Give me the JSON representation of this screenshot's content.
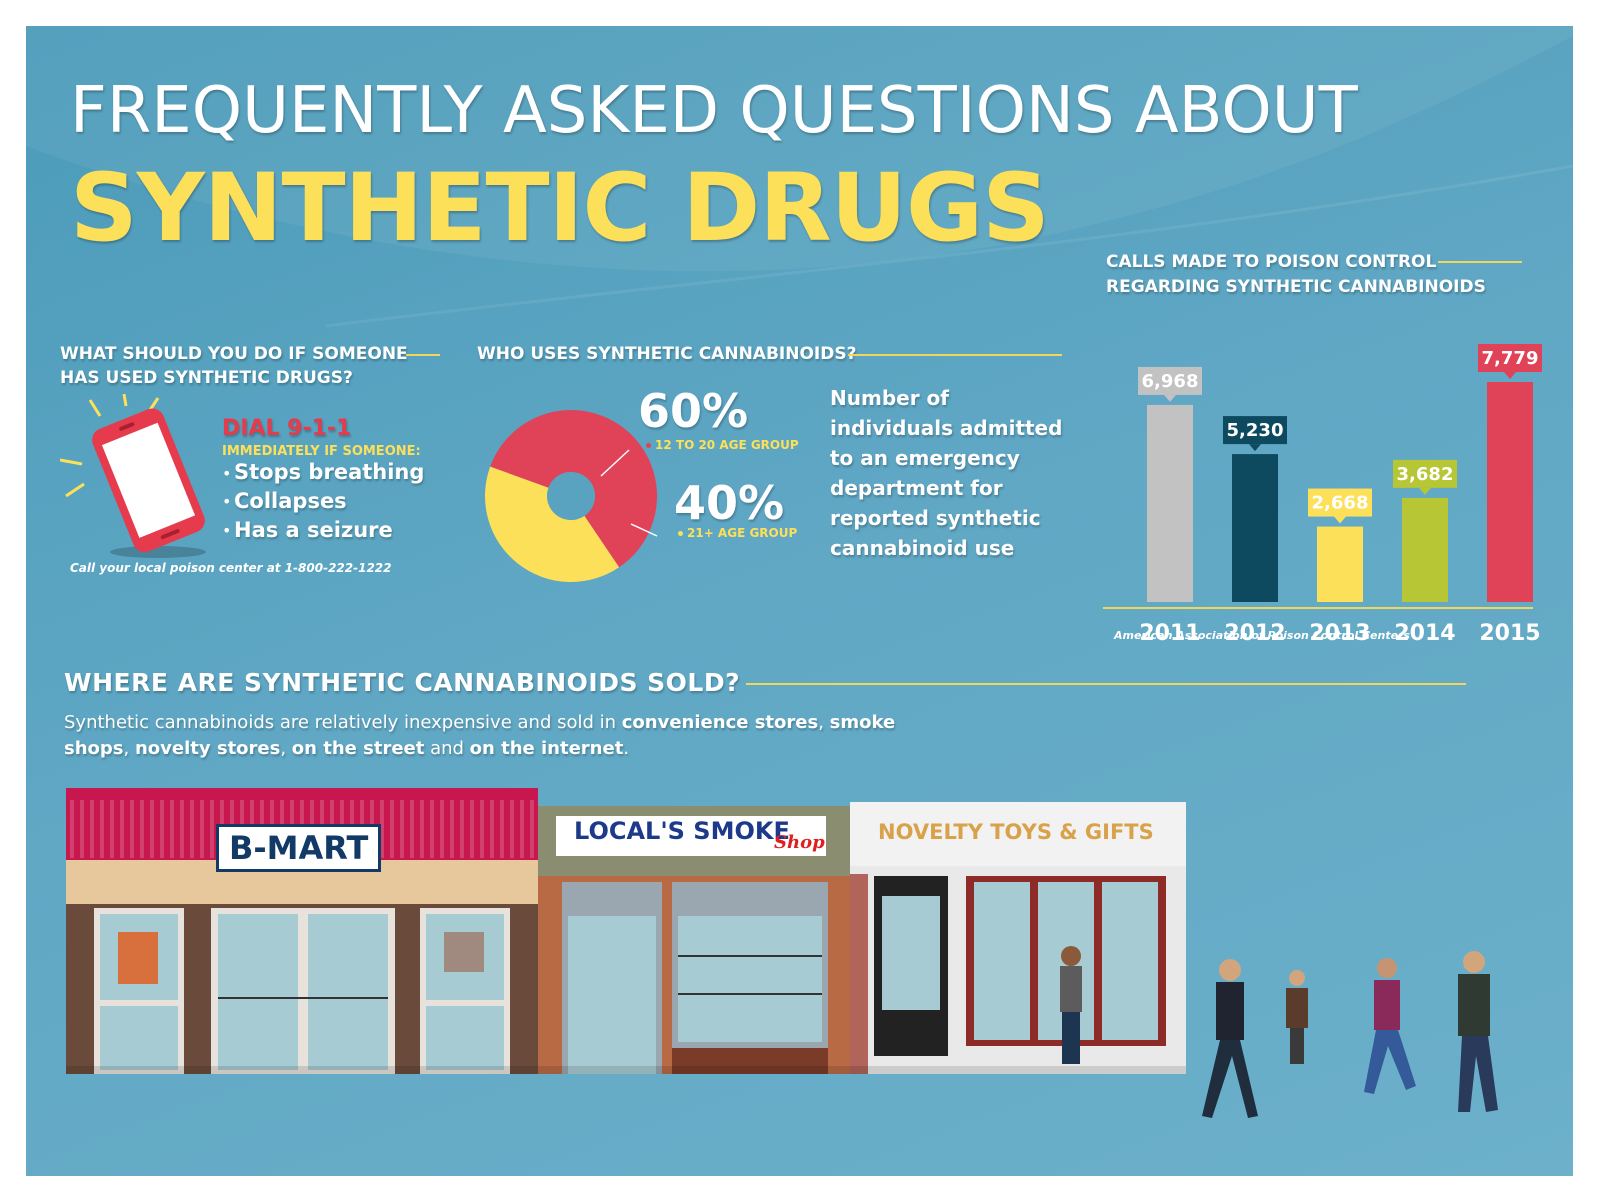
{
  "title": {
    "line1": "FREQUENTLY ASKED QUESTIONS ABOUT",
    "line2": "SYNTHETIC DRUGS"
  },
  "section_emergency": {
    "heading_line1": "WHAT SHOULD YOU DO IF SOMEONE",
    "heading_line2": "HAS USED SYNTHETIC DRUGS?",
    "dial": "DIAL 9-1-1",
    "dial_sub": "IMMEDIATELY IF SOMEONE:",
    "symptoms": [
      "Stops breathing",
      "Collapses",
      "Has a seizure"
    ],
    "bullet": "•",
    "poison_center_note": "Call your local poison center at 1-800-222-1222",
    "icon": "phone-ringing-icon"
  },
  "section_users": {
    "heading": "WHO USES SYNTHETIC CANNABINOIDS?",
    "slices": [
      {
        "value_label": "60%",
        "label": "12 TO 20 AGE GROUP",
        "value": 60,
        "color": "#e04258"
      },
      {
        "value_label": "40%",
        "label": "21+ AGE GROUP",
        "value": 40,
        "color": "#fde05a"
      }
    ],
    "admitted_text": "Number of individuals admitted to an emergency department for reported synthetic cannabinoid use"
  },
  "chart_data": [
    {
      "type": "pie",
      "categories": [
        "12 TO 20 AGE GROUP",
        "21+ AGE GROUP"
      ],
      "values": [
        60,
        40
      ]
    },
    {
      "type": "bar",
      "title": "CALLS MADE TO POISON CONTROL REGARDING SYNTHETIC  CANNABINOIDS",
      "title_line1": "CALLS MADE TO POISON CONTROL",
      "title_line2": "REGARDING SYNTHETIC  CANNABINOIDS",
      "categories": [
        "2011",
        "2012",
        "2013",
        "2014",
        "2015"
      ],
      "values": [
        6968,
        5230,
        2668,
        3682,
        7779
      ],
      "value_labels": [
        "6,968",
        "5,230",
        "2,668",
        "3,682",
        "7,779"
      ],
      "colors": [
        "#c2c2c2",
        "#0d4a60",
        "#fde05a",
        "#b7c634",
        "#e04258"
      ],
      "label_text_colors": [
        "#ffffff",
        "#ffffff",
        "#ffffff",
        "#ffffff",
        "#ffffff"
      ],
      "source": "American Association of Poison Control Centers",
      "grid": false,
      "legend": "none"
    }
  ],
  "section_where": {
    "heading": "WHERE ARE SYNTHETIC CANNABINOIDS SOLD?",
    "text_parts": [
      {
        "t": "Synthetic cannabinoids are relatively inexpensive and sold in ",
        "b": false
      },
      {
        "t": "convenience stores",
        "b": true
      },
      {
        "t": ", ",
        "b": false
      },
      {
        "t": "smoke shops",
        "b": true
      },
      {
        "t": ", ",
        "b": false
      },
      {
        "t": "novelty stores",
        "b": true
      },
      {
        "t": ", ",
        "b": false
      },
      {
        "t": "on the street",
        "b": true
      },
      {
        "t": " and ",
        "b": false
      },
      {
        "t": "on the internet",
        "b": true
      },
      {
        "t": ".",
        "b": false
      }
    ]
  },
  "stores": {
    "bmart": "B-MART",
    "smoke": "LOCAL'S SMOKE",
    "smoke_script": "Shop",
    "novelty": "NOVELTY TOYS & GIFTS"
  }
}
